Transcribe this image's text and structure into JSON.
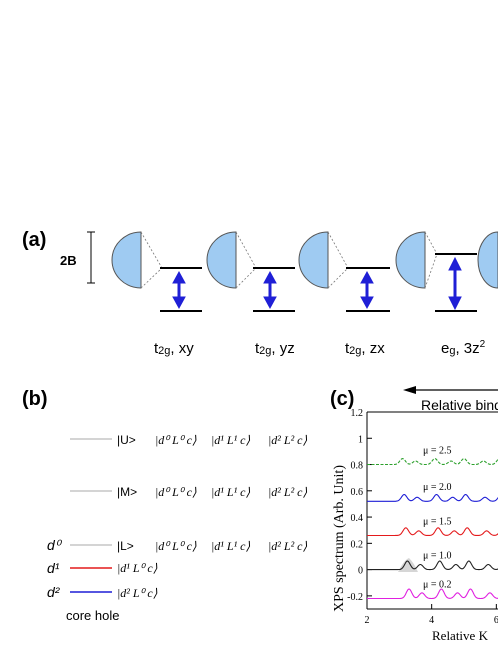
{
  "panel_a": {
    "label": "(a)",
    "scale_label": "2B",
    "orbitals": [
      {
        "main": "t",
        "sub": "2g",
        "rest": ", xy"
      },
      {
        "main": "t",
        "sub": "2g",
        "rest": ", yz"
      },
      {
        "main": "t",
        "sub": "2g",
        "rest": ", zx"
      },
      {
        "main": "e",
        "sub": "g",
        "rest": ", 3z",
        "sup": "2"
      }
    ]
  },
  "panel_b": {
    "label": "(b)",
    "states": [
      {
        "name": "|U>",
        "configs": [
          "|d⁰ L⁰ c⟩",
          "|d¹ L¹ c⟩",
          "|d² L² c⟩"
        ]
      },
      {
        "name": "|M>",
        "configs": [
          "|d⁰ L⁰ c⟩",
          "|d¹ L¹ c⟩",
          "|d² L² c⟩"
        ]
      },
      {
        "name": "|L>",
        "configs": [
          "|d⁰ L⁰ c⟩",
          "|d¹ L¹ c⟩",
          "|d² L² c⟩"
        ]
      }
    ],
    "legend": [
      {
        "label": "d⁰",
        "color": "#bbbbbb"
      },
      {
        "label": "d¹",
        "color": "#e41a1c",
        "config": "|d¹ L⁰ c⟩"
      },
      {
        "label": "d²",
        "color": "#1f1fd6",
        "config": "|d² L⁰ c⟩"
      }
    ],
    "legend_caption": "core hole"
  },
  "panel_c": {
    "label": "(c)",
    "top_axis_label": "Relative bind",
    "chart_data": {
      "type": "line",
      "ylabel": "XPS spectrum (Arb. Unit)",
      "xlabel": "Relative K",
      "xlim": [
        2,
        8
      ],
      "ylim": [
        -0.3,
        1.2
      ],
      "x_ticks": [
        "2",
        "4",
        "6"
      ],
      "y_ticks": [
        "-0.2",
        "0",
        "0.2",
        "0.4",
        "0.6",
        "0.8",
        "1",
        "1.2"
      ],
      "series": [
        {
          "name": "μ = 2.5",
          "color": "#2ca02c",
          "offset": 0.8
        },
        {
          "name": "μ = 2.0",
          "color": "#1f1fd6",
          "offset": 0.52
        },
        {
          "name": "μ = 1.5",
          "color": "#e41a1c",
          "offset": 0.26
        },
        {
          "name": "μ = 1.0",
          "color": "#222222",
          "offset": 0.0
        },
        {
          "name": "μ = 0.2",
          "color": "#e020e0",
          "offset": -0.22
        }
      ]
    }
  }
}
